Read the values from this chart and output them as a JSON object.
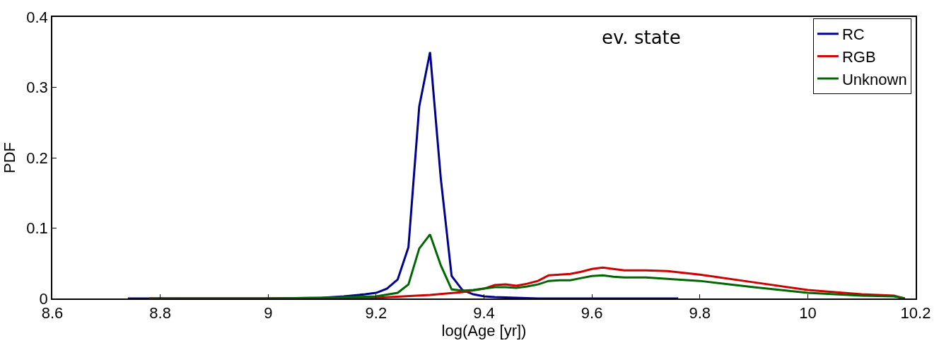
{
  "chart_data": {
    "type": "line",
    "xlabel": "log(Age [yr])",
    "ylabel": "PDF",
    "annotations": [
      "ev. state"
    ],
    "xlim": [
      8.6,
      10.2
    ],
    "xticks": [
      8.6,
      8.8,
      9,
      9.2,
      9.4,
      9.6,
      9.8,
      10,
      10.2
    ],
    "ylim": [
      0,
      0.4
    ],
    "yticks": [
      0,
      0.1,
      0.2,
      0.3,
      0.4
    ],
    "legend": "top right",
    "marker": "none",
    "line_style": "solid",
    "series": [
      {
        "name": "RC",
        "color": "#00008f",
        "x": [
          8.74,
          8.9,
          9.0,
          9.1,
          9.14,
          9.18,
          9.2,
          9.22,
          9.24,
          9.26,
          9.28,
          9.3,
          9.32,
          9.34,
          9.36,
          9.38,
          9.4,
          9.42,
          9.46,
          9.5,
          9.6,
          9.76
        ],
        "values": [
          0,
          0,
          0,
          0.001,
          0.003,
          0.006,
          0.008,
          0.014,
          0.027,
          0.073,
          0.273,
          0.35,
          0.17,
          0.032,
          0.012,
          0.006,
          0.003,
          0.002,
          0.001,
          0,
          0,
          0
        ]
      },
      {
        "name": "RGB",
        "color": "#cc0000",
        "x": [
          8.78,
          9.0,
          9.2,
          9.3,
          9.36,
          9.4,
          9.42,
          9.44,
          9.46,
          9.48,
          9.5,
          9.52,
          9.54,
          9.56,
          9.58,
          9.6,
          9.62,
          9.64,
          9.66,
          9.7,
          9.74,
          9.8,
          9.9,
          10.0,
          10.1,
          10.16,
          10.18
        ],
        "values": [
          0,
          0,
          0.001,
          0.005,
          0.009,
          0.014,
          0.019,
          0.02,
          0.018,
          0.021,
          0.025,
          0.033,
          0.034,
          0.035,
          0.038,
          0.042,
          0.044,
          0.042,
          0.04,
          0.04,
          0.039,
          0.034,
          0.023,
          0.012,
          0.006,
          0.004,
          0
        ]
      },
      {
        "name": "Unknown",
        "color": "#006600",
        "x": [
          8.78,
          9.0,
          9.1,
          9.2,
          9.24,
          9.26,
          9.28,
          9.3,
          9.32,
          9.34,
          9.36,
          9.38,
          9.4,
          9.42,
          9.44,
          9.46,
          9.48,
          9.5,
          9.52,
          9.54,
          9.56,
          9.58,
          9.6,
          9.62,
          9.64,
          9.66,
          9.7,
          9.8,
          9.9,
          10.0,
          10.1,
          10.16,
          10.18
        ],
        "values": [
          0,
          0,
          0.001,
          0.003,
          0.008,
          0.02,
          0.071,
          0.091,
          0.047,
          0.013,
          0.011,
          0.012,
          0.014,
          0.016,
          0.016,
          0.015,
          0.017,
          0.02,
          0.025,
          0.026,
          0.026,
          0.029,
          0.032,
          0.033,
          0.031,
          0.03,
          0.03,
          0.025,
          0.016,
          0.008,
          0.004,
          0.003,
          0
        ]
      }
    ]
  }
}
